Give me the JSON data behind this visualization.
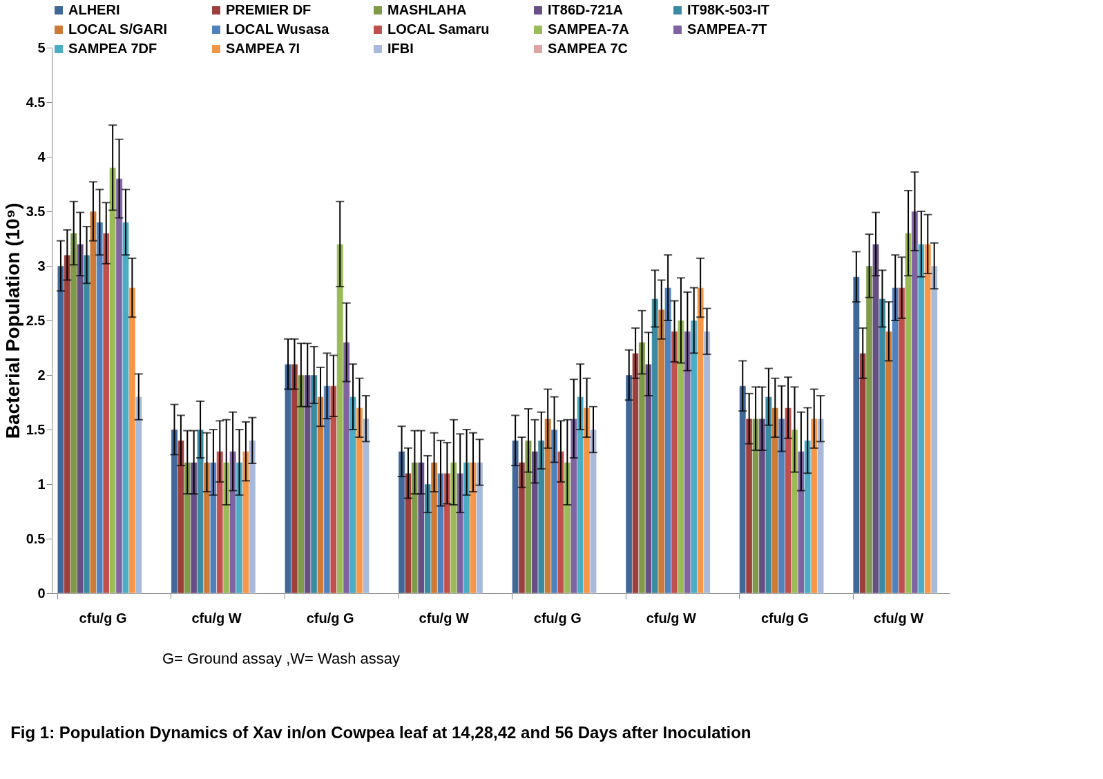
{
  "chart_data": {
    "type": "bar",
    "title": "Fig 1: Population Dynamics of Xav in/on Cowpea leaf at 14,28,42 and 56 Days after Inoculation",
    "ylabel": "Bacterial Population (10⁹)",
    "annotations": [
      "G= Ground assay ,W= Wash assay"
    ],
    "categories": [
      "cfu/g G",
      "cfu/g W",
      "cfu/g G",
      "cfu/g W",
      "cfu/g G",
      "cfu/g W",
      "cfu/g G",
      "cfu/g W"
    ],
    "ylim": [
      0,
      5
    ],
    "yticks": [
      0,
      0.5,
      1,
      1.5,
      2,
      2.5,
      3,
      3.5,
      4,
      4.5,
      5
    ],
    "grid": false,
    "legend": "top",
    "series": [
      {
        "name": "ALHERI",
        "color": "#3f6797",
        "values": [
          3.0,
          1.5,
          2.1,
          1.3,
          1.4,
          2.0,
          1.9,
          2.9
        ],
        "errors": [
          0.23,
          0.23,
          0.23,
          0.23,
          0.23,
          0.23,
          0.23,
          0.23
        ]
      },
      {
        "name": "PREMIER DF",
        "color": "#9c3f3d",
        "values": [
          3.1,
          1.4,
          2.1,
          1.1,
          1.2,
          2.2,
          1.6,
          2.2
        ],
        "errors": [
          0.23,
          0.23,
          0.23,
          0.23,
          0.23,
          0.23,
          0.23,
          0.23
        ]
      },
      {
        "name": "MASHLAHA",
        "color": "#7f9a48",
        "values": [
          3.3,
          1.2,
          2.0,
          1.2,
          1.4,
          2.3,
          1.6,
          3.0
        ],
        "errors": [
          0.29,
          0.29,
          0.29,
          0.29,
          0.29,
          0.29,
          0.29,
          0.29
        ]
      },
      {
        "name": "IT86D-721A",
        "color": "#664f85",
        "values": [
          3.2,
          1.2,
          2.0,
          1.2,
          1.3,
          2.1,
          1.6,
          3.2
        ],
        "errors": [
          0.29,
          0.29,
          0.29,
          0.29,
          0.29,
          0.29,
          0.29,
          0.29
        ]
      },
      {
        "name": "IT98K-503-IT",
        "color": "#3a8aa1",
        "values": [
          3.1,
          1.5,
          2.0,
          1.0,
          1.4,
          2.7,
          1.8,
          2.7
        ],
        "errors": [
          0.26,
          0.26,
          0.26,
          0.26,
          0.26,
          0.26,
          0.26,
          0.26
        ]
      },
      {
        "name": "LOCAL S/GARI",
        "color": "#cc7a35",
        "values": [
          3.5,
          1.2,
          1.8,
          1.2,
          1.6,
          2.6,
          1.7,
          2.4
        ],
        "errors": [
          0.27,
          0.27,
          0.27,
          0.27,
          0.27,
          0.27,
          0.27,
          0.27
        ]
      },
      {
        "name": "LOCAL Wusasa",
        "color": "#4f81bd",
        "values": [
          3.4,
          1.2,
          1.9,
          1.1,
          1.5,
          2.8,
          1.6,
          2.8
        ],
        "errors": [
          0.3,
          0.3,
          0.3,
          0.3,
          0.3,
          0.3,
          0.3,
          0.3
        ]
      },
      {
        "name": "LOCAL Samaru",
        "color": "#c0504d",
        "values": [
          3.3,
          1.3,
          1.9,
          1.1,
          1.3,
          2.4,
          1.7,
          2.8
        ],
        "errors": [
          0.28,
          0.28,
          0.28,
          0.28,
          0.28,
          0.28,
          0.28,
          0.28
        ]
      },
      {
        "name": "SAMPEA-7A",
        "color": "#9bbb59",
        "values": [
          3.9,
          1.2,
          3.2,
          1.2,
          1.2,
          2.5,
          1.5,
          3.3
        ],
        "errors": [
          0.39,
          0.39,
          0.39,
          0.39,
          0.39,
          0.39,
          0.39,
          0.39
        ]
      },
      {
        "name": "SAMPEA-7T",
        "color": "#8064a2",
        "values": [
          3.8,
          1.3,
          2.3,
          1.1,
          1.6,
          2.4,
          1.3,
          3.5
        ],
        "errors": [
          0.36,
          0.36,
          0.36,
          0.36,
          0.36,
          0.36,
          0.36,
          0.36
        ]
      },
      {
        "name": "SAMPEA 7DF",
        "color": "#4bacc6",
        "values": [
          3.4,
          1.2,
          1.8,
          1.2,
          1.8,
          2.5,
          1.4,
          3.2
        ],
        "errors": [
          0.3,
          0.3,
          0.3,
          0.3,
          0.3,
          0.3,
          0.3,
          0.3
        ]
      },
      {
        "name": "SAMPEA 7I",
        "color": "#f79646",
        "values": [
          2.8,
          1.3,
          1.7,
          1.2,
          1.7,
          2.8,
          1.6,
          3.2
        ],
        "errors": [
          0.27,
          0.27,
          0.27,
          0.27,
          0.27,
          0.27,
          0.27,
          0.27
        ]
      },
      {
        "name": "IFBI",
        "color": "#a9b9d9",
        "values": [
          1.8,
          1.4,
          1.6,
          1.2,
          1.5,
          2.4,
          1.6,
          3.0
        ],
        "errors": [
          0.21,
          0.21,
          0.21,
          0.21,
          0.21,
          0.21,
          0.21,
          0.21
        ]
      },
      {
        "name": "SAMPEA 7C",
        "color": "#dba5a3",
        "values": [
          null,
          null,
          null,
          null,
          null,
          null,
          null,
          null
        ]
      }
    ]
  }
}
